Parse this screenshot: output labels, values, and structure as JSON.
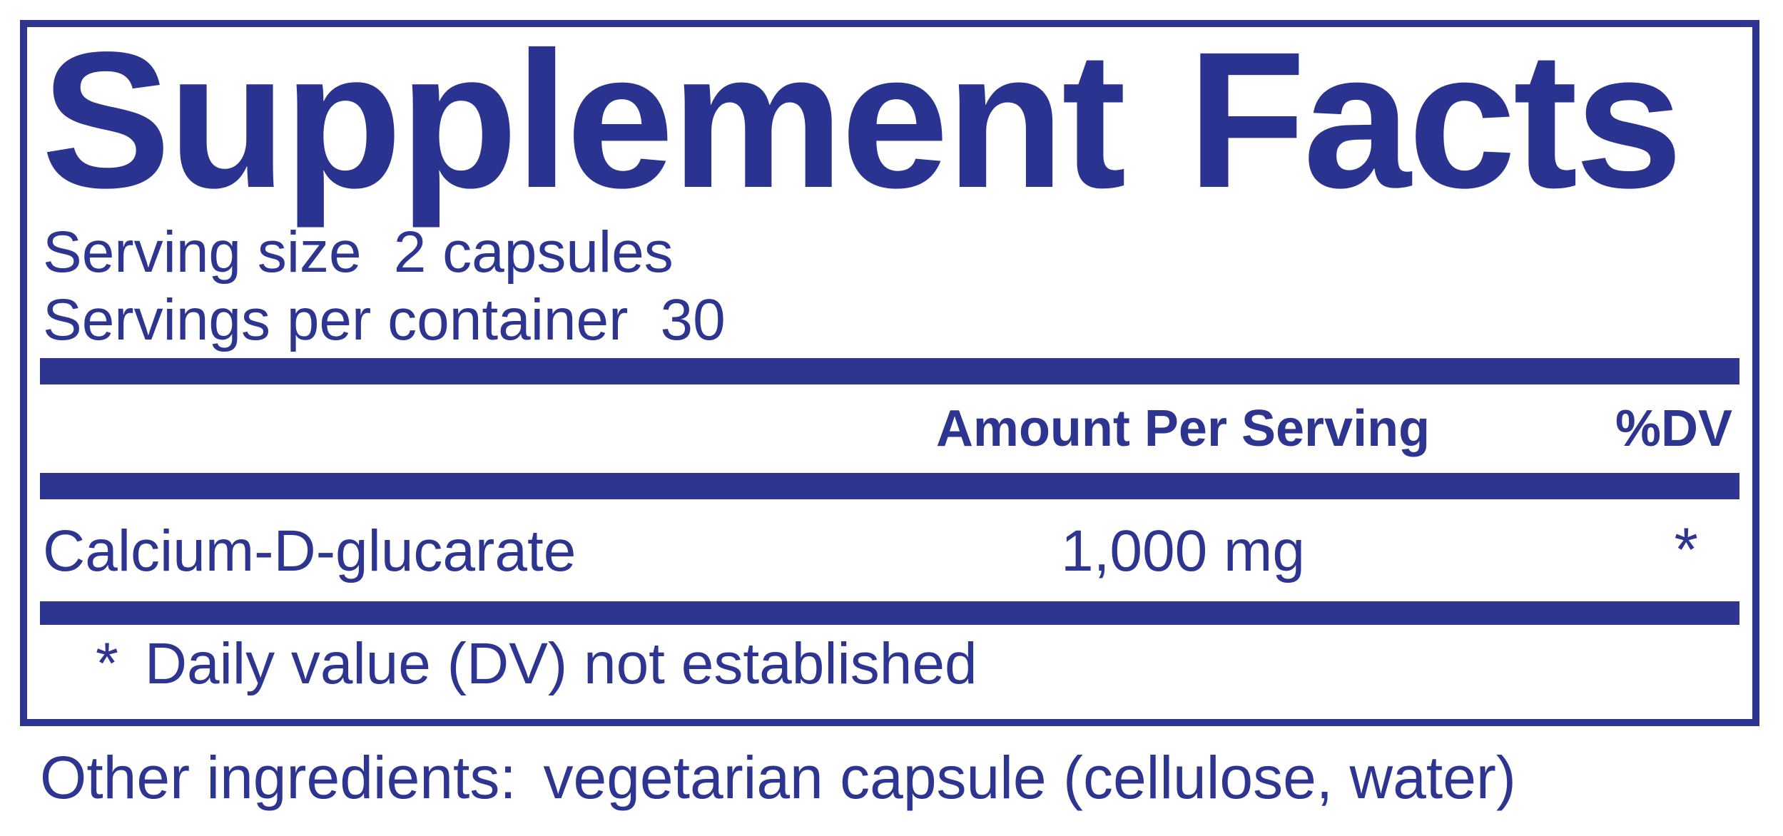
{
  "colors": {
    "navy": "#2d3590",
    "background": "#ffffff"
  },
  "panel": {
    "title": "Supplement Facts",
    "serving": {
      "size_label": "Serving size",
      "size_value": "2 capsules",
      "container_label": "Servings per container",
      "container_value": "30"
    },
    "columns": {
      "amount": "Amount Per Serving",
      "dv": "%DV"
    },
    "rows": [
      {
        "name": "Calcium-D-glucarate",
        "amount": "1,000 mg",
        "dv": "*"
      }
    ],
    "footnote": {
      "symbol": "*",
      "text": "Daily value (DV) not established"
    }
  },
  "other_ingredients": {
    "label": "Other ingredients:",
    "value": "vegetarian capsule (cellulose, water)"
  }
}
